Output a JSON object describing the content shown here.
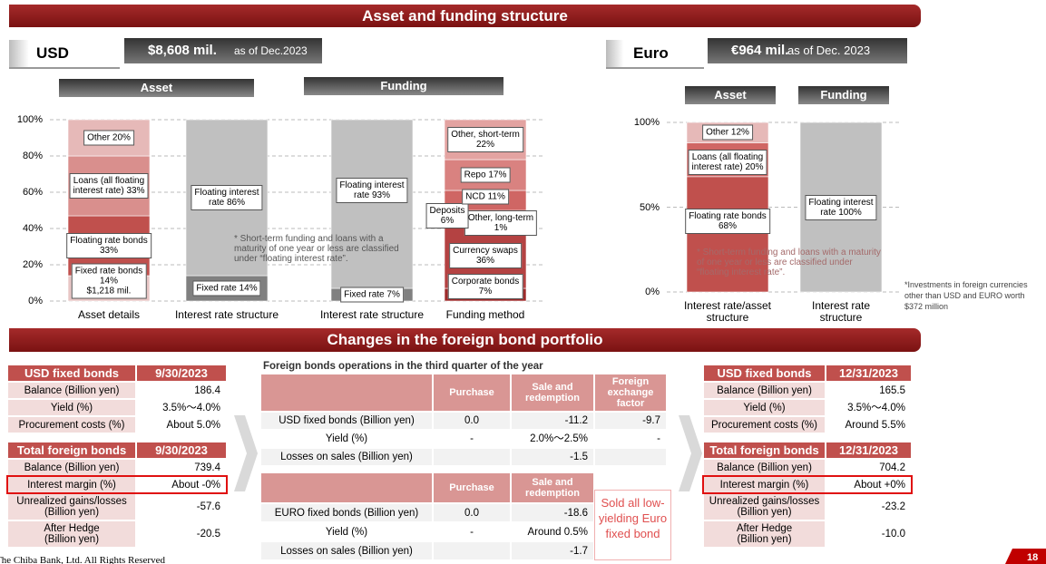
{
  "title": "Asset and funding structure",
  "usd": {
    "label": "USD",
    "amount": "$8,608 mil.",
    "asof": "as of Dec.2023",
    "asset_header": "Asset",
    "funding_header": "Funding",
    "note": "*  Short-term funding and loans with a maturity of one year or less are classified under “floating interest rate”.",
    "chart": {
      "type": "bar",
      "stacked": true,
      "ylim": [
        0,
        100
      ],
      "grid": true,
      "yticks": [
        {
          "value": 0,
          "label": "0%"
        },
        {
          "value": 20,
          "label": "20%"
        },
        {
          "value": 40,
          "label": "40%"
        },
        {
          "value": 60,
          "label": "60%"
        },
        {
          "value": 80,
          "label": "80%"
        },
        {
          "value": 100,
          "label": "100%"
        }
      ],
      "bars": [
        {
          "category": "Asset details",
          "segments": [
            {
              "label": "Fixed rate bonds\n14%\n$1,218 mil.",
              "value": 14,
              "color": "#e8c6c5"
            },
            {
              "label": "Floating rate bonds\n33%",
              "value": 33,
              "color": "#c0504d"
            },
            {
              "label": "Loans (all floating\ninterest rate) 33%",
              "value": 33,
              "color": "#d98f8d"
            },
            {
              "label": "Other 20%",
              "value": 20,
              "color": "#e6b9b8"
            }
          ]
        },
        {
          "category": "Interest rate structure",
          "segments": [
            {
              "label": "Fixed rate 14%",
              "value": 14,
              "color": "#808080"
            },
            {
              "label": "Floating interest\nrate 86%",
              "value": 86,
              "color": "#c0c0c0"
            }
          ]
        },
        {
          "category": "Interest rate structure",
          "segments": [
            {
              "label": "Fixed rate 7%",
              "value": 7,
              "color": "#808080"
            },
            {
              "label": "Floating interest\nrate 93%",
              "value": 93,
              "color": "#c0c0c0"
            }
          ]
        },
        {
          "category": "Funding method",
          "segments": [
            {
              "label": "Corporate bonds\n7%",
              "value": 7,
              "color": "#9e2a2a"
            },
            {
              "label": "Currency swaps\n36%",
              "value": 36,
              "color": "#b44242"
            },
            {
              "label": "Other, long-term\n1%",
              "value": 1,
              "color": "#c0504d"
            },
            {
              "label": "Deposits\n6%",
              "value": 6,
              "color": "#c75a57"
            },
            {
              "label": "NCD 11%",
              "value": 11,
              "color": "#cf6664"
            },
            {
              "label": "Repo 17%",
              "value": 17,
              "color": "#d98280"
            },
            {
              "label": "Other, short-term\n22%",
              "value": 22,
              "color": "#e3a3a1"
            }
          ]
        }
      ]
    }
  },
  "euro": {
    "label": "Euro",
    "amount": "€964 mil.",
    "asof": "as of Dec. 2023",
    "asset_header": "Asset",
    "funding_header": "Funding",
    "note": "*  Short-term funding and loans with a maturity of one year or less are classified under “floating interest rate”.",
    "footnote": "*Investments in foreign currencies\nother than USD and EURO worth\n$372 million",
    "chart": {
      "type": "bar",
      "stacked": true,
      "ylim": [
        0,
        100
      ],
      "grid": true,
      "yticks": [
        {
          "value": 0,
          "label": "0%"
        },
        {
          "value": 50,
          "label": "50%"
        },
        {
          "value": 100,
          "label": "100%"
        }
      ],
      "bars": [
        {
          "category": "Interest rate/asset\nstructure",
          "segments": [
            {
              "label": "Floating rate bonds\n68%",
              "value": 68,
              "color": "#c0504d"
            },
            {
              "label": "Loans (all floating\ninterest rate) 20%",
              "value": 20,
              "color": "#d06664"
            },
            {
              "label": "Other 12%",
              "value": 12,
              "color": "#e6b9b8"
            }
          ]
        },
        {
          "category": "Interest rate\nstructure",
          "segments": [
            {
              "label": "Floating interest\nrate 100%",
              "value": 100,
              "color": "#c0c0c0"
            }
          ]
        }
      ]
    }
  },
  "portfolio": {
    "title": "Changes in the foreign bond portfolio",
    "before": {
      "header": [
        "USD fixed bonds",
        "9/30/2023"
      ],
      "rows": [
        [
          "Balance (Billion yen)",
          "186.4"
        ],
        [
          "Yield (%)",
          "3.5%～4.0%"
        ],
        [
          "Procurement costs (%)",
          "About 5.0%"
        ]
      ]
    },
    "before_total": {
      "header": [
        "Total foreign bonds",
        "9/30/2023"
      ],
      "rows": [
        [
          "Balance (Billion yen)",
          "739.4"
        ],
        [
          "Interest margin (%)",
          "About -0%"
        ],
        [
          "Unrealized gains/losses\n(Billion yen)",
          "-57.6"
        ],
        [
          "After Hedge\n(Billion yen)",
          "-20.5"
        ]
      ]
    },
    "operations": {
      "caption": "Foreign bonds operations in the third quarter of the year",
      "usd": {
        "columns": [
          "Purchase",
          "Sale and\nredemption",
          "Foreign\nexchange\nfactor"
        ],
        "rows": [
          [
            "USD fixed bonds (Billion yen)",
            "0.0",
            "-11.2",
            "-9.7"
          ],
          [
            "Yield (%)",
            "-",
            "2.0%～2.5%",
            "-"
          ],
          [
            "Losses on sales (Billion yen)",
            null,
            "-1.5",
            null
          ]
        ]
      },
      "euro": {
        "columns": [
          "Purchase",
          "Sale and\nredemption"
        ],
        "rows": [
          [
            "EURO fixed bonds (Billion yen)",
            "0.0",
            "-18.6"
          ],
          [
            "Yield (%)",
            "-",
            "Around 0.5%"
          ],
          [
            "Losses on sales (Billion yen)",
            null,
            "-1.7"
          ]
        ]
      },
      "note": "Sold all low-\nyielding Euro\nfixed bond"
    },
    "after": {
      "header": [
        "USD fixed bonds",
        "12/31/2023"
      ],
      "rows": [
        [
          "Balance (Billion yen)",
          "165.5"
        ],
        [
          "Yield (%)",
          "3.5%～4.0%"
        ],
        [
          "Procurement costs (%)",
          "Around 5.5%"
        ]
      ]
    },
    "after_total": {
      "header": [
        "Total foreign bonds",
        "12/31/2023"
      ],
      "rows": [
        [
          "Balance (Billion yen)",
          "704.2"
        ],
        [
          "Interest margin (%)",
          "About +0%"
        ],
        [
          "Unrealized gains/losses\n(Billion yen)",
          "-23.2"
        ],
        [
          "After Hedge\n(Billion yen)",
          "-10.0"
        ]
      ]
    }
  },
  "footer": {
    "copyright": "The Chiba Bank, Ltd. All Rights Reserved",
    "page": "18"
  }
}
